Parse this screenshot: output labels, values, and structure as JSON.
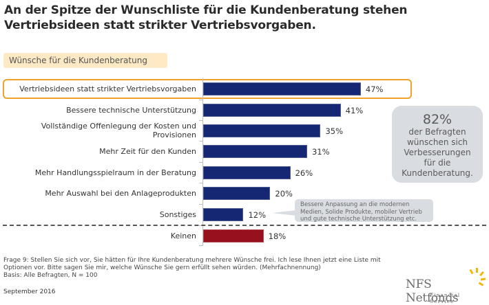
{
  "header": {
    "title": "An der Spitze der Wunschliste für die Kundenberatung stehen Vertriebsideen statt strikter Vertriebsvorgaben.",
    "subtitle": "Wünsche für die Kundenberatung"
  },
  "colors": {
    "bar_primary": "#152672",
    "bar_secondary": "#96101e",
    "highlight_border": "#f0a228",
    "subtitle_bg": "#fde9c4",
    "callout_bg": "#d9dce0",
    "logo_accent": "#f2b705"
  },
  "chart_data": {
    "type": "bar",
    "orientation": "horizontal",
    "title": "Wünsche für die Kundenberatung",
    "xlabel": "",
    "ylabel": "",
    "unit": "%",
    "xlim": [
      0,
      100
    ],
    "categories": [
      "Vertriebsideen statt strikter Vertriebsvorgaben",
      "Bessere technische Unterstützung",
      "Vollständige Offenlegung der Kosten und Provisionen",
      "Mehr Zeit für den Kunden",
      "Mehr Handlungsspielraum in der Beratung",
      "Mehr Auswahl bei den Anlageprodukten",
      "Sonstiges",
      "Keinen"
    ],
    "category_lines": [
      [
        "Vertriebsideen statt strikter Vertriebsvorgaben"
      ],
      [
        "Bessere technische Unterstützung"
      ],
      [
        "Vollständige Offenlegung der Kosten und",
        "Provisionen"
      ],
      [
        "Mehr Zeit für den Kunden"
      ],
      [
        "Mehr Handlungsspielraum in der Beratung"
      ],
      [
        "Mehr Auswahl bei den Anlageprodukten"
      ],
      [
        "Sonstiges"
      ],
      [
        "Keinen"
      ]
    ],
    "values": [
      47,
      41,
      35,
      31,
      26,
      20,
      12,
      18
    ],
    "labels": [
      "47%",
      "41%",
      "35%",
      "31%",
      "26%",
      "20%",
      "12%",
      "18%"
    ],
    "series_group": [
      "primary",
      "primary",
      "primary",
      "primary",
      "primary",
      "primary",
      "primary",
      "secondary"
    ],
    "highlighted_category": "Vertriebsideen statt strikter Vertriebsvorgaben",
    "separator_before": "Keinen",
    "grid": false,
    "legend": "none"
  },
  "callout": {
    "value": "82%",
    "lines": [
      "der Befragten",
      "wünschen sich",
      "Verbesserungen",
      "für die",
      "Kundenberatung."
    ]
  },
  "note": {
    "lines": [
      "Bessere Anpassung an die modernen",
      "Medien, Solide Produkte, mobiler Vertrieb",
      "und gute technische Unterstützung etc."
    ]
  },
  "footer": {
    "question_lines": [
      "Frage 9: Stellen Sie sich vor, Sie hätten für Ihre Kundenberatung mehrere Wünsche frei. Ich lese Ihnen jetzt eine Liste mit",
      "Optionen vor. Bitte sagen Sie mir, welche Wünsche Sie gern erfüllt sehen würden. (Mehrfachnennung)",
      "Basis: Alle Befragten, N = 100"
    ],
    "date": "September 2016"
  },
  "logo": {
    "name": "NFS Netfonds",
    "tagline": "Financial Service"
  }
}
